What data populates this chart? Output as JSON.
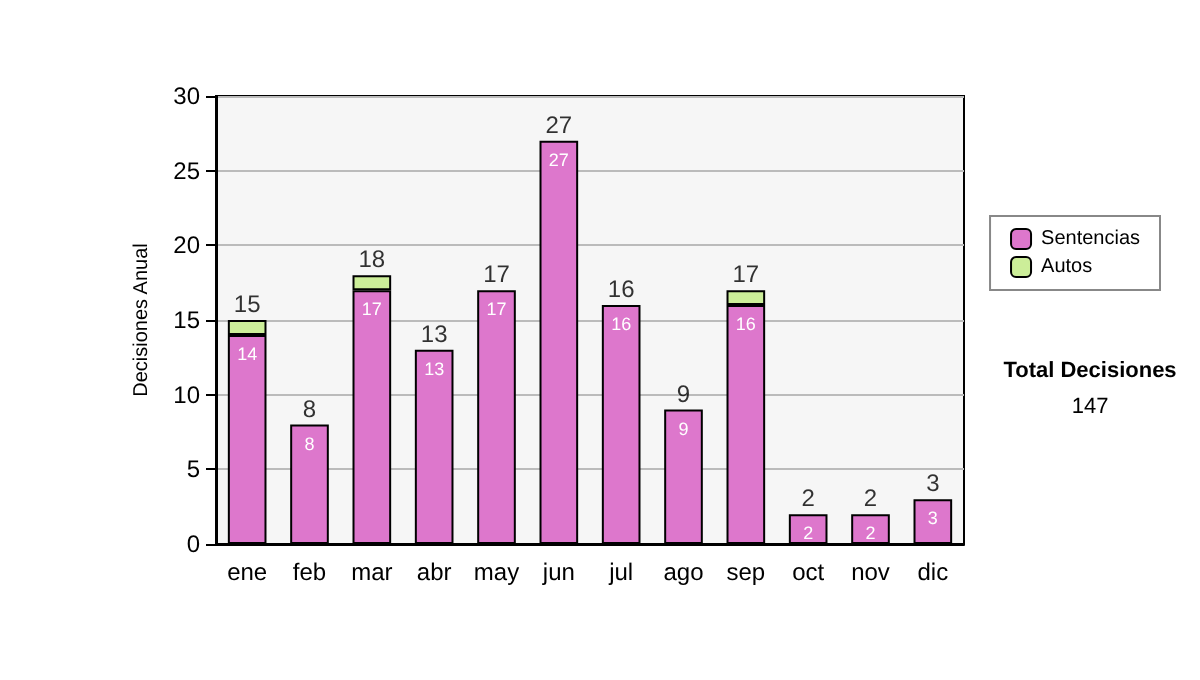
{
  "chart_data": {
    "type": "bar",
    "stacked": true,
    "ylabel": "Decisiones Anual",
    "categories": [
      "ene",
      "feb",
      "mar",
      "abr",
      "may",
      "jun",
      "jul",
      "ago",
      "sep",
      "oct",
      "nov",
      "dic"
    ],
    "series": [
      {
        "name": "Sentencias",
        "color": "#dd77cc",
        "values": [
          14,
          8,
          17,
          13,
          17,
          27,
          16,
          9,
          16,
          2,
          2,
          3
        ],
        "value_labels": [
          "14",
          "8",
          "17",
          "13",
          "17",
          "27",
          "16",
          "9",
          "16",
          "2",
          "2",
          "3"
        ]
      },
      {
        "name": "Autos",
        "color": "#ccee99",
        "values": [
          1,
          0,
          1,
          0,
          0,
          0,
          0,
          0,
          1,
          0,
          0,
          0
        ]
      }
    ],
    "totals": [
      "15",
      "8",
      "18",
      "13",
      "17",
      "27",
      "16",
      "9",
      "17",
      "2",
      "2",
      "3"
    ],
    "ylim": [
      0,
      30
    ],
    "yticks": [
      0,
      5,
      10,
      15,
      20,
      25,
      30
    ],
    "grid": "y",
    "legend": "right",
    "annotations": [
      "Total Decisiones",
      "147"
    ]
  }
}
